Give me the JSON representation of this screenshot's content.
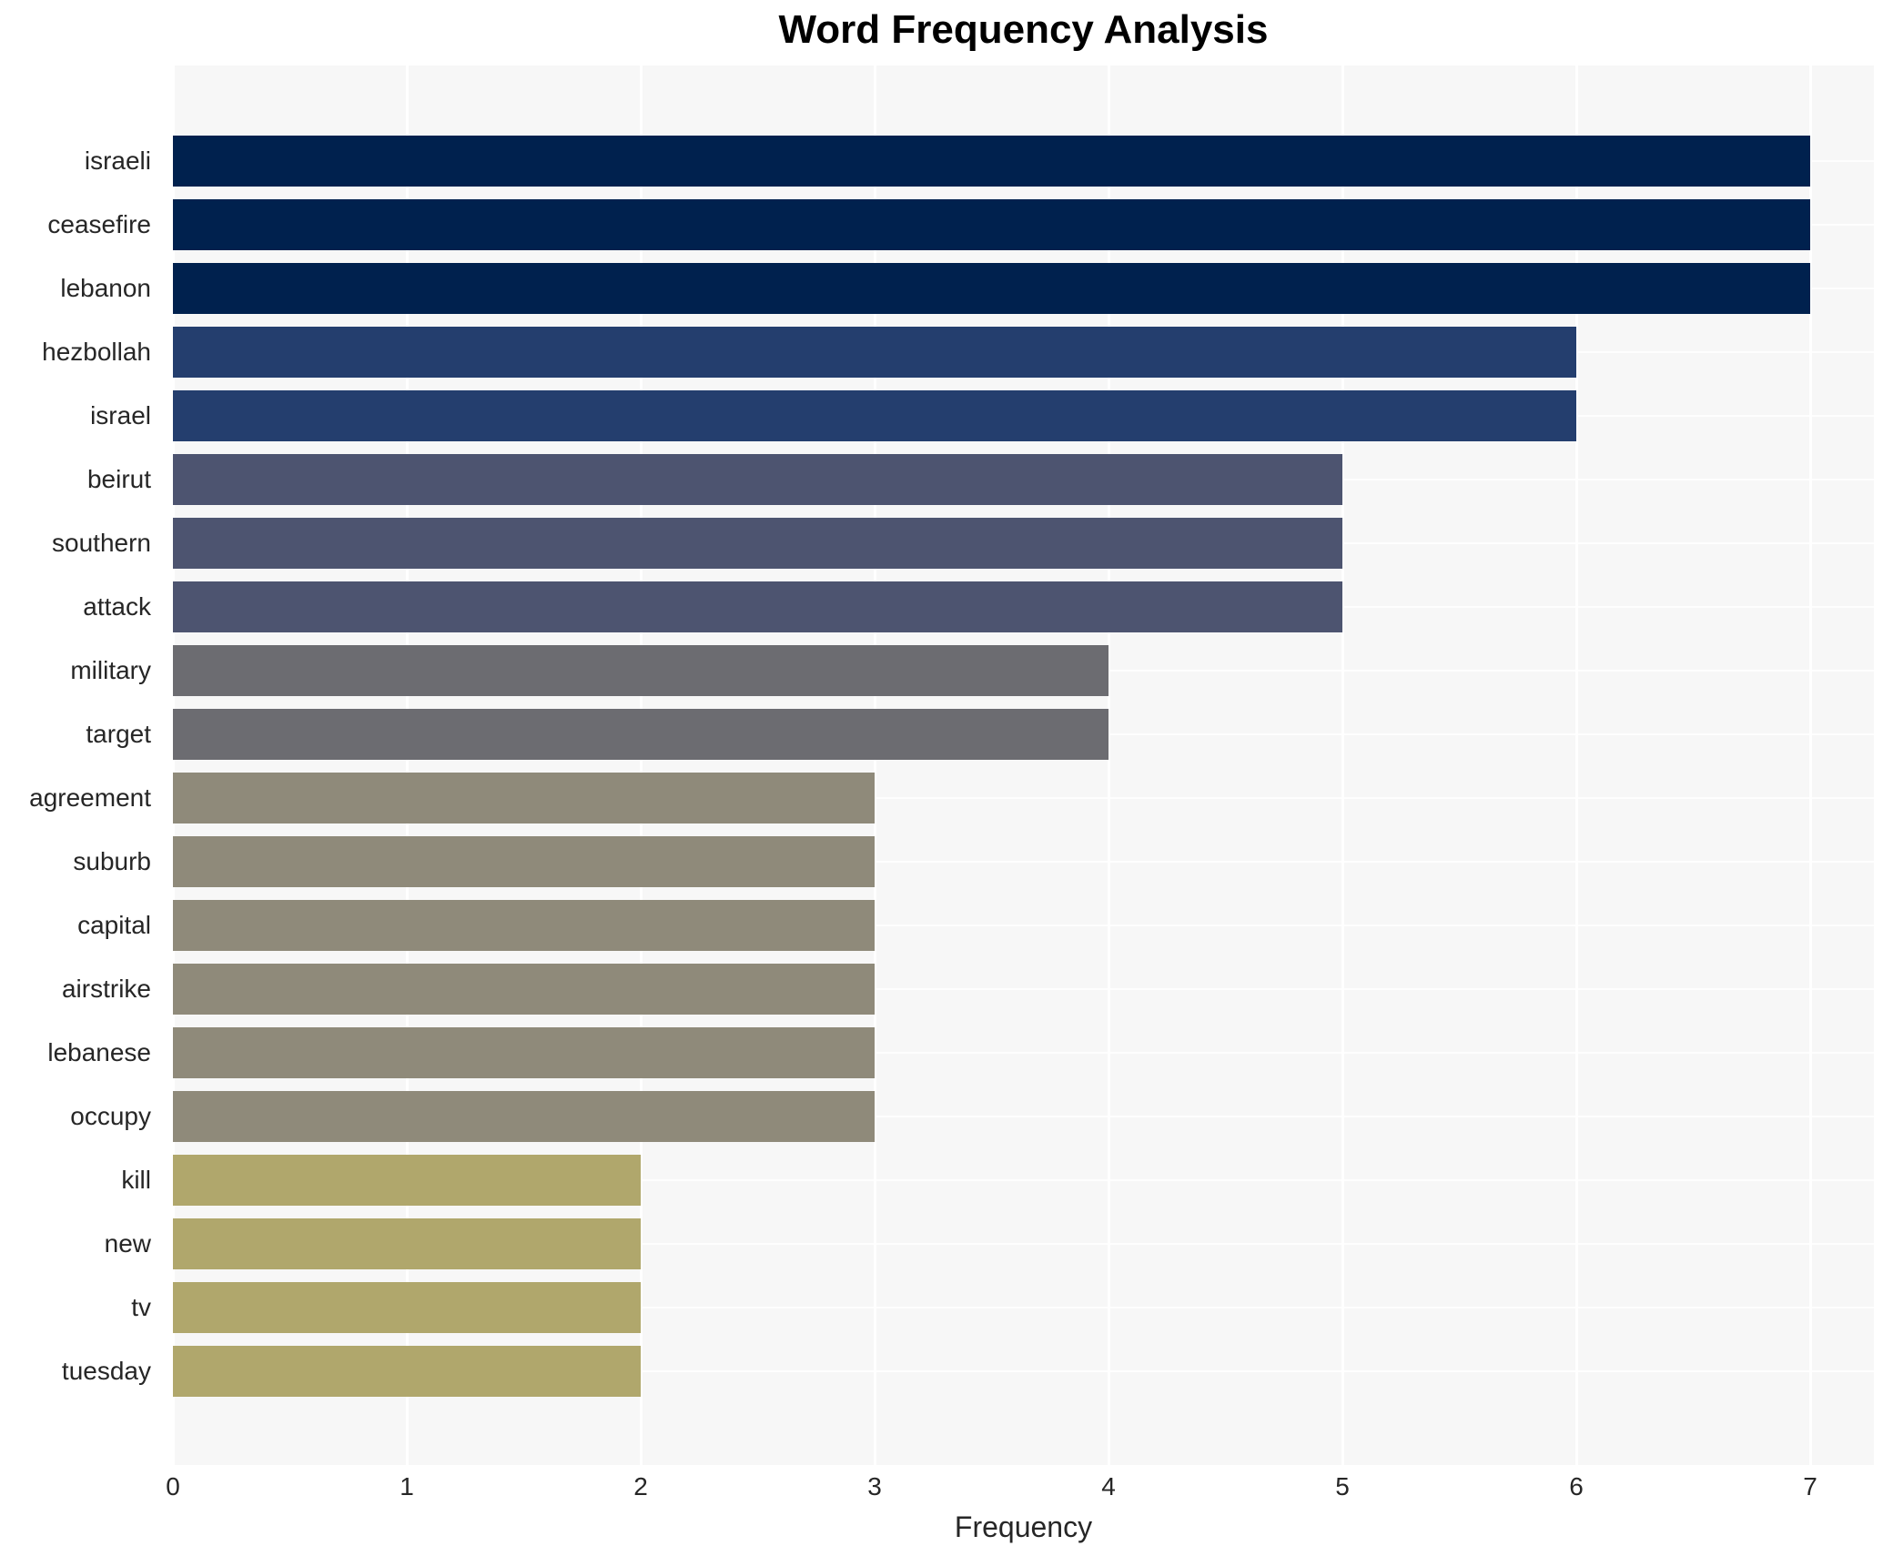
{
  "chart_data": {
    "type": "bar",
    "orientation": "horizontal",
    "title": "Word Frequency Analysis",
    "xlabel": "Frequency",
    "ylabel": "",
    "categories": [
      "israeli",
      "ceasefire",
      "lebanon",
      "hezbollah",
      "israel",
      "beirut",
      "southern",
      "attack",
      "military",
      "target",
      "agreement",
      "suburb",
      "capital",
      "airstrike",
      "lebanese",
      "occupy",
      "kill",
      "new",
      "tv",
      "tuesday"
    ],
    "values": [
      7,
      7,
      7,
      6,
      6,
      5,
      5,
      5,
      4,
      4,
      3,
      3,
      3,
      3,
      3,
      3,
      2,
      2,
      2,
      2
    ],
    "bar_colors": [
      "#00214e",
      "#00214e",
      "#00214e",
      "#243e6e",
      "#243e6e",
      "#4d5470",
      "#4d5470",
      "#4d5470",
      "#6c6c71",
      "#6c6c71",
      "#8f8a7a",
      "#8f8a7a",
      "#8f8a7a",
      "#8f8a7a",
      "#8f8a7a",
      "#8f8a7a",
      "#b0a76c",
      "#b0a76c",
      "#b0a76c",
      "#b0a76c"
    ],
    "xticks": [
      0,
      1,
      2,
      3,
      4,
      5,
      6,
      7
    ],
    "xlim": [
      0,
      7.27
    ],
    "grid": true,
    "legend": "none",
    "plot_background": "#f7f7f7",
    "gridline_color": "#ffffff",
    "text_color": "#262626",
    "title_color": "#000000"
  }
}
